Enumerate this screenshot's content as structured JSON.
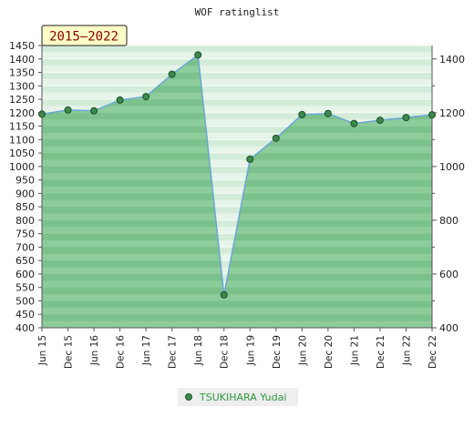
{
  "chart_data": {
    "type": "area",
    "title": "WOF ratinglist",
    "period_badge": "2015–2022",
    "categories": [
      "Jun 15",
      "Dec 15",
      "Jun 16",
      "Dec 16",
      "Jun 17",
      "Dec 17",
      "Jun 18",
      "Dec 18",
      "Jun 19",
      "Dec 19",
      "Jun 20",
      "Dec 20",
      "Jun 21",
      "Dec 21",
      "Jun 22",
      "Dec 22"
    ],
    "series": [
      {
        "name": "TSUKIHARA Yudai",
        "values": [
          1195,
          1210,
          1207,
          1247,
          1260,
          1343,
          1415,
          522,
          1027,
          1105,
          1193,
          1197,
          1160,
          1172,
          1182,
          1192
        ]
      }
    ],
    "y_left": {
      "min": 400,
      "max": 1450,
      "step": 50,
      "ticks": [
        "400",
        "450",
        "500",
        "550",
        "600",
        "650",
        "700",
        "750",
        "800",
        "850",
        "900",
        "950",
        "1000",
        "1050",
        "1100",
        "1150",
        "1200",
        "1250",
        "1300",
        "1350",
        "1400",
        "1450"
      ]
    },
    "y_right": {
      "ticks": [
        "400",
        "600",
        "800",
        "1000",
        "1200",
        "1400"
      ]
    },
    "colors": {
      "line": "#6aa6d6",
      "fill": "#7cc48d",
      "marker": "#3b8a4b",
      "badge_bg": "#ffffc8",
      "badge_text": "#8b0000",
      "legend_text": "#2e9a3e"
    },
    "grid": true,
    "legend": "bottom-center"
  }
}
